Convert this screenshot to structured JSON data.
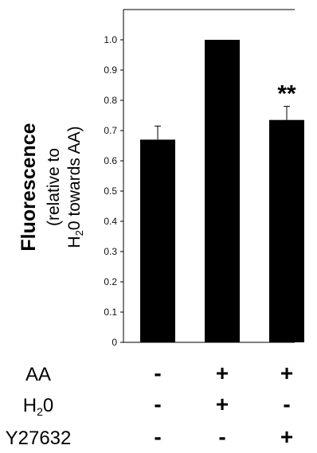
{
  "chart_data": {
    "type": "bar",
    "categories": [
      "",
      "",
      ""
    ],
    "values": [
      0.67,
      1.0,
      0.735
    ],
    "error_bars": [
      0.045,
      0,
      0.045
    ],
    "bar_color": "#000000",
    "ylim": [
      0,
      1.05
    ],
    "y_ticks": [
      "0",
      "0.1",
      "0.2",
      "0.3",
      "0.4",
      "0.5",
      "0.6",
      "0.7",
      "0.8",
      "0.9",
      "1.0"
    ],
    "ylabel": {
      "main": "Fluorescence",
      "line2": "(relative to",
      "line3_prefix": "H",
      "line3_sub": "2",
      "line3_rest": "0 towards AA)"
    },
    "significance": [
      {
        "category_index": 2,
        "label": "**"
      }
    ],
    "treatment_table": {
      "rows": [
        {
          "label": "AA",
          "label_sub": "",
          "label_rest": "",
          "marks": [
            "-",
            "+",
            "+"
          ]
        },
        {
          "label": "H",
          "label_sub": "2",
          "label_rest": "0",
          "marks": [
            "-",
            "+",
            "-"
          ]
        },
        {
          "label": "Y27632",
          "label_sub": "",
          "label_rest": "",
          "marks": [
            "-",
            "-",
            "+"
          ]
        }
      ]
    },
    "grid": false,
    "legend": "none"
  }
}
